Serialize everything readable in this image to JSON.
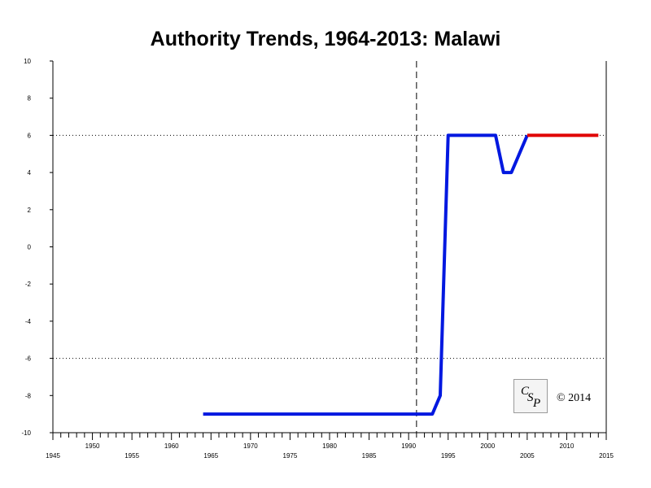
{
  "chart_data": {
    "type": "line",
    "title": "Authority Trends, 1964-2013: Malawi",
    "xlim": [
      1945,
      2015
    ],
    "ylim": [
      -10,
      10
    ],
    "x_tick_labels_low": [
      "1945",
      "1955",
      "1965",
      "1975",
      "1985",
      "1995",
      "2005",
      "2015"
    ],
    "x_tick_labels_high": [
      "1950",
      "1960",
      "1970",
      "1980",
      "1990",
      "2000",
      "2010"
    ],
    "y_tick_labels": [
      "10",
      "8",
      "6",
      "4",
      "2",
      "0",
      "-2",
      "-4",
      "-6",
      "-8",
      "-10"
    ],
    "reference_lines": {
      "horizontal_dotted": [
        6,
        -6
      ],
      "vertical_dashed": [
        1991
      ]
    },
    "series": [
      {
        "color": "#0018e0",
        "points": [
          [
            1964,
            -9
          ],
          [
            1993,
            -9
          ],
          [
            1994,
            -8
          ],
          [
            1995,
            6
          ],
          [
            2001,
            6
          ],
          [
            2002,
            4
          ],
          [
            2003,
            4
          ],
          [
            2005,
            6
          ]
        ]
      },
      {
        "color": "#e00000",
        "points": [
          [
            2005,
            6
          ],
          [
            2014,
            6
          ]
        ]
      }
    ]
  },
  "logo": {
    "text": "CSP"
  },
  "copyright": "© 2014"
}
